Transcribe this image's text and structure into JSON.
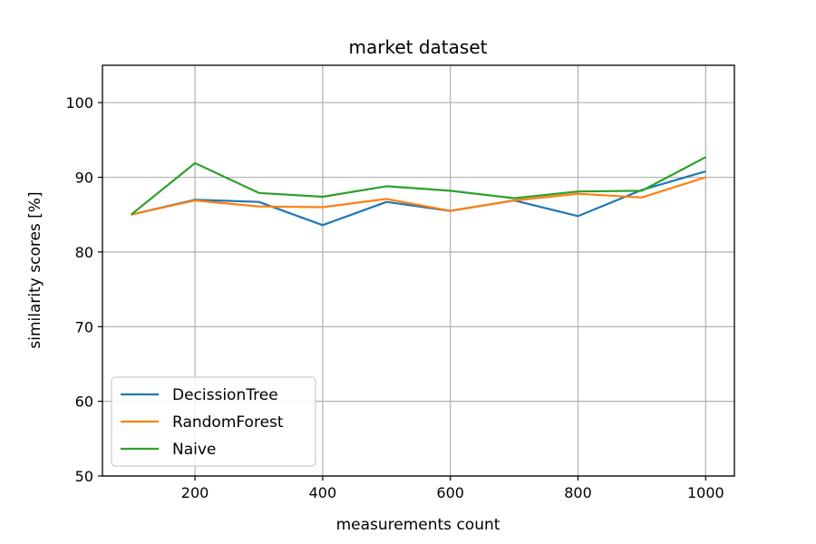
{
  "chart_data": {
    "type": "line",
    "title": "market dataset",
    "xlabel": "measurements count",
    "ylabel": "similarity scores [%]",
    "xlim": [
      55,
      1045
    ],
    "ylim": [
      50,
      105
    ],
    "xticks": [
      200,
      400,
      600,
      800,
      1000
    ],
    "yticks": [
      50,
      60,
      70,
      80,
      90,
      100
    ],
    "grid": true,
    "legend_position": "lower-left",
    "x": [
      100,
      200,
      300,
      400,
      500,
      600,
      700,
      800,
      900,
      1000
    ],
    "series": [
      {
        "name": "DecissionTree",
        "color": "#1f77b4",
        "values": [
          85.0,
          87.0,
          86.7,
          83.6,
          86.7,
          85.5,
          86.9,
          84.8,
          88.3,
          90.8
        ]
      },
      {
        "name": "RandomForest",
        "color": "#ff7f0e",
        "values": [
          85.0,
          86.9,
          86.1,
          86.0,
          87.1,
          85.5,
          86.9,
          87.8,
          87.3,
          90.0
        ]
      },
      {
        "name": "Naive",
        "color": "#2ca02c",
        "values": [
          85.0,
          91.9,
          87.9,
          87.4,
          88.8,
          88.2,
          87.2,
          88.1,
          88.2,
          92.7
        ]
      }
    ]
  }
}
